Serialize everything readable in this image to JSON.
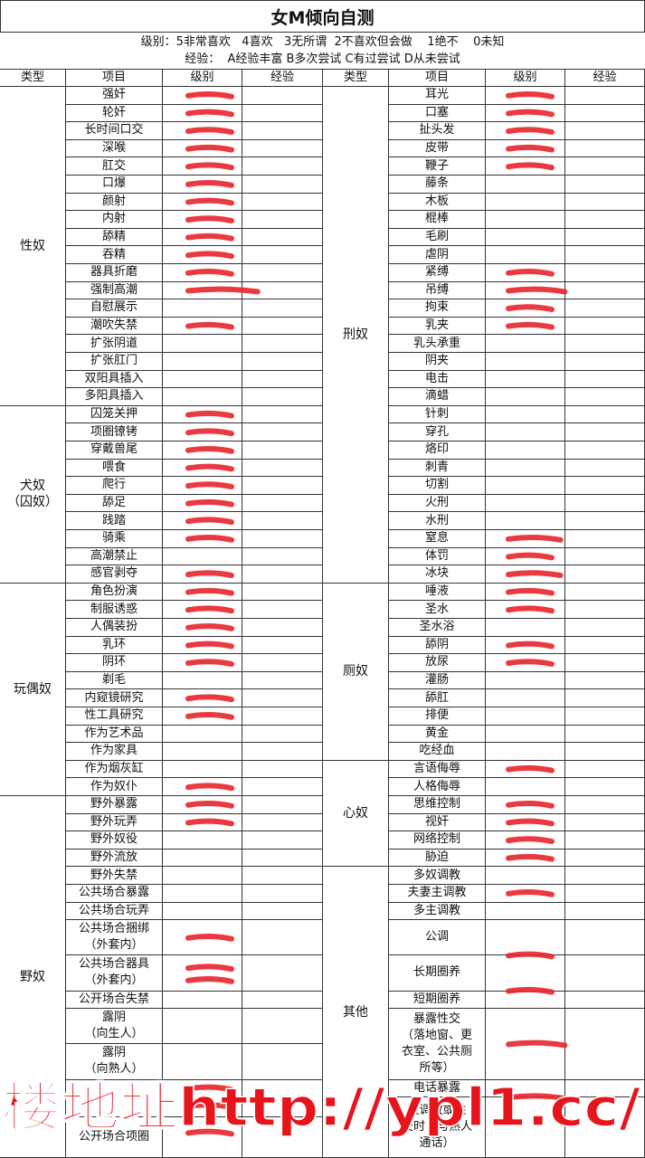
{
  "header": {
    "title": "女M倾向自测",
    "level_legend": "级别：5非常喜欢   4喜欢   3无所谓  2不喜欢但会做    1绝不    0未知",
    "experience_legend": "经验：  A经验丰富 B多次尝试 C有过尝试 D从未尝试"
  },
  "table": {
    "columns": [
      "类型",
      "项目",
      "级别",
      "经验"
    ],
    "left": [
      {
        "type": "性奴",
        "items": [
          "强奸",
          "轮奸",
          "长时间口交",
          "深喉",
          "肛交",
          "口爆",
          "颜射",
          "内射",
          "舔精",
          "吞精",
          "器具折磨",
          "强制高潮",
          "自慰展示",
          "潮吹失禁",
          "扩张阴道",
          "扩张肛门",
          "双阳具插入",
          "多阳具插入"
        ]
      },
      {
        "type": "犬奴\n（囚奴）",
        "items": [
          "囚笼关押",
          "项圈镣铐",
          "穿戴兽尾",
          "喂食",
          "爬行",
          "舔足",
          "践踏",
          "骑乘",
          "高潮禁止",
          "感官剥夺"
        ]
      },
      {
        "type": "玩偶奴",
        "items": [
          "角色扮演",
          "制服诱惑",
          "人偶装扮",
          "乳环",
          "阴环",
          "剃毛",
          "内窥镜研究",
          "性工具研究",
          "作为艺术品",
          "作为家具",
          "作为烟灰缸",
          "作为奴仆"
        ]
      },
      {
        "type": "野奴",
        "items": [
          "野外暴露",
          "野外玩弄",
          "野外奴役",
          "野外流放",
          "野外失禁",
          "公共场合暴露",
          "公共场合玩弄",
          "公共场合捆绑\n（外套内）",
          "公共场合器具\n（外套内）",
          "公开场合失禁",
          "露阴\n（向生人）",
          "露阴\n（向熟人）",
          "公开场合项圈"
        ]
      }
    ],
    "right": [
      {
        "type": "刑奴",
        "items": [
          "耳光",
          "口塞",
          "扯头发",
          "皮带",
          "鞭子",
          "藤条",
          "木板",
          "棍棒",
          "毛刷",
          "虐阴",
          "紧缚",
          "吊缚",
          "拘束",
          "乳夹",
          "乳头承重",
          "阴夹",
          "电击",
          "滴蜡",
          "针刺",
          "穿孔",
          "烙印",
          "刺青",
          "切割",
          "火刑",
          "水刑",
          "窒息",
          "体罚",
          "冰块"
        ]
      },
      {
        "type": "厕奴",
        "items": [
          "唾液",
          "圣水",
          "圣水浴",
          "舔阴",
          "放尿",
          "灌肠",
          "舔肛",
          "排便",
          "黄金",
          "吃经血"
        ]
      },
      {
        "type": "心奴",
        "items": [
          "言语侮辱",
          "人格侮辱",
          "思维控制",
          "视奸",
          "网络控制",
          "胁迫"
        ]
      },
      {
        "type": "其他",
        "items": [
          "多奴调教",
          "夫妻主调教",
          "多主调教",
          "公调",
          "长期圈养",
          "短期圈养",
          "暴露性交\n（落地窗、更\n衣室、公共厕\n所等）",
          "电话暴露",
          "被调教或性\n交时（与熟人\n通话）"
        ]
      }
    ]
  },
  "watermark": "楼地址http://ypl1.cc/"
}
